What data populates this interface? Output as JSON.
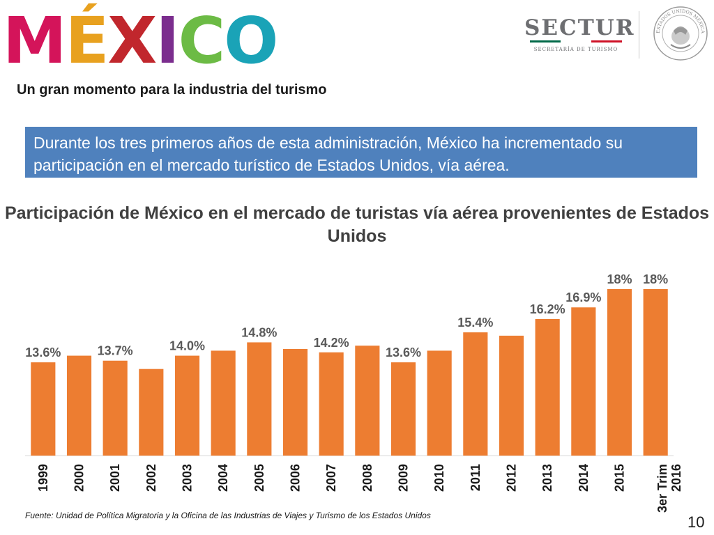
{
  "header": {
    "logo_word": "MÉXICO",
    "logo_letters": [
      {
        "ch": "M",
        "color": "#d4145a"
      },
      {
        "ch": "É",
        "color": "#e8a11f"
      },
      {
        "ch": "X",
        "color": "#c1272d"
      },
      {
        "ch": "I",
        "color": "#7b2d8e"
      },
      {
        "ch": "C",
        "color": "#6cbb45"
      },
      {
        "ch": "O",
        "color": "#1aa3b7"
      }
    ],
    "sectur": {
      "name": "SECTUR",
      "subtitle": "SECRETARÍA DE TURISMO",
      "flag_colors": [
        "#006847",
        "#ffffff",
        "#ce1126"
      ]
    },
    "seal_text": "ESTADOS UNIDOS MEXICANOS"
  },
  "subtitle": "Un gran momento para la industria del turismo",
  "banner": {
    "text": "Durante los tres primeros años de esta administración, México ha incrementado su participación en el mercado turístico de Estados Unidos, vía aérea.",
    "color": "#4f81bd"
  },
  "chart_data": {
    "type": "bar",
    "title": "Participación de México en el mercado de turistas vía aérea provenientes de Estados Unidos",
    "categories": [
      "1999",
      "2000",
      "2001",
      "2002",
      "2003",
      "2004",
      "2005",
      "2006",
      "2007",
      "2008",
      "2009",
      "2010",
      "2011",
      "2012",
      "2013",
      "2014",
      "2015",
      "3er Trim 2016"
    ],
    "values": [
      13.6,
      14.0,
      13.7,
      13.2,
      14.0,
      14.3,
      14.8,
      14.4,
      14.2,
      14.6,
      13.6,
      14.3,
      15.4,
      15.2,
      16.2,
      16.9,
      18.0,
      18.0
    ],
    "data_labels": [
      "13.6%",
      null,
      "13.7%",
      null,
      "14.0%",
      null,
      "14.8%",
      null,
      "14.2%",
      null,
      "13.6%",
      null,
      "15.4%",
      null,
      "16.2%",
      "16.9%",
      "18%",
      "18%"
    ],
    "ylim": [
      8,
      18.5
    ],
    "bar_color": "#ed7d31",
    "grid": false,
    "legend": "none",
    "xlabel": "",
    "ylabel": ""
  },
  "footer": {
    "source": "Fuente: Unidad de Política Migratoria y la Oficina de las Industrias de Viajes y Turismo de los Estados Unidos",
    "page_number": "10"
  }
}
